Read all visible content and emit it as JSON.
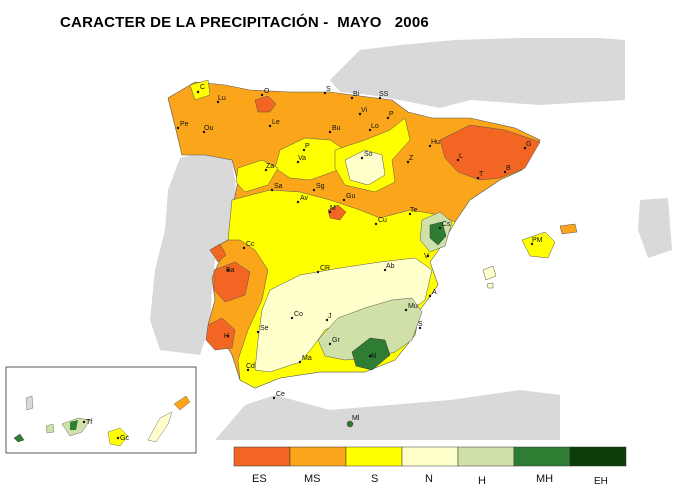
{
  "title": "CARACTER DE LA PRECIPITACIÓN -  MAYO   2006",
  "colors": {
    "ES": "#f26522",
    "MS": "#fba51a",
    "S": "#ffff00",
    "N": "#ffffcc",
    "H": "#cfe0a8",
    "MH": "#2e7d32",
    "EH": "#0b3d0b",
    "land": "#d9d9d9",
    "sea": "#ffffff"
  },
  "legend": [
    {
      "code": "ES",
      "label": "ES",
      "color": "#f26522"
    },
    {
      "code": "MS",
      "label": "MS",
      "color": "#fba51a"
    },
    {
      "code": "S",
      "label": "S",
      "color": "#ffff00"
    },
    {
      "code": "N",
      "label": "N",
      "color": "#ffffcc"
    },
    {
      "code": "H",
      "label": "H",
      "color": "#cfe0a8"
    },
    {
      "code": "MH",
      "label": "MH",
      "color": "#2e7d32"
    },
    {
      "code": "EH",
      "label": "EH",
      "color": "#0b3d0b"
    }
  ],
  "stations": [
    {
      "id": "C",
      "label": "C"
    },
    {
      "id": "Lu",
      "label": "Lu"
    },
    {
      "id": "O",
      "label": "O"
    },
    {
      "id": "S",
      "label": "S"
    },
    {
      "id": "Bi",
      "label": "Bi"
    },
    {
      "id": "SS",
      "label": "SS"
    },
    {
      "id": "Pe",
      "label": "Pe"
    },
    {
      "id": "Ou",
      "label": "Ou"
    },
    {
      "id": "Le",
      "label": "Le"
    },
    {
      "id": "Bu",
      "label": "Bu"
    },
    {
      "id": "Vi",
      "label": "Vi"
    },
    {
      "id": "Lo",
      "label": "Lo"
    },
    {
      "id": "P",
      "label": "P"
    },
    {
      "id": "Hu",
      "label": "Hu"
    },
    {
      "id": "L",
      "label": "L"
    },
    {
      "id": "G",
      "label": "G"
    },
    {
      "id": "B",
      "label": "B"
    },
    {
      "id": "T",
      "label": "T"
    },
    {
      "id": "Z",
      "label": "Z"
    },
    {
      "id": "So",
      "label": "So"
    },
    {
      "id": "Za",
      "label": "Za"
    },
    {
      "id": "Va",
      "label": "Va"
    },
    {
      "id": "Sa",
      "label": "Sa"
    },
    {
      "id": "Sg",
      "label": "Sg"
    },
    {
      "id": "Av",
      "label": "Av"
    },
    {
      "id": "Gu",
      "label": "Gu"
    },
    {
      "id": "M",
      "label": "M"
    },
    {
      "id": "Cu",
      "label": "Cu"
    },
    {
      "id": "Te",
      "label": "Te"
    },
    {
      "id": "Cs",
      "label": "Cs"
    },
    {
      "id": "Cc",
      "label": "Cc"
    },
    {
      "id": "Ba",
      "label": "Ba"
    },
    {
      "id": "CR",
      "label": "CR"
    },
    {
      "id": "Ab",
      "label": "Ab"
    },
    {
      "id": "V",
      "label": "V"
    },
    {
      "id": "A",
      "label": "A"
    },
    {
      "id": "Mu",
      "label": "Mu"
    },
    {
      "id": "Co",
      "label": "Co"
    },
    {
      "id": "J",
      "label": "J"
    },
    {
      "id": "Se",
      "label": "Se"
    },
    {
      "id": "H",
      "label": "H"
    },
    {
      "id": "Gr",
      "label": "Gr"
    },
    {
      "id": "Al",
      "label": "Al"
    },
    {
      "id": "Ma",
      "label": "Ma"
    },
    {
      "id": "Cd",
      "label": "Cd"
    },
    {
      "id": "Ce",
      "label": "Ce"
    },
    {
      "id": "Ml",
      "label": "Ml"
    },
    {
      "id": "PM",
      "label": "PM"
    },
    {
      "id": "Tf",
      "label": "Tf"
    },
    {
      "id": "Gc",
      "label": "Gc"
    }
  ]
}
